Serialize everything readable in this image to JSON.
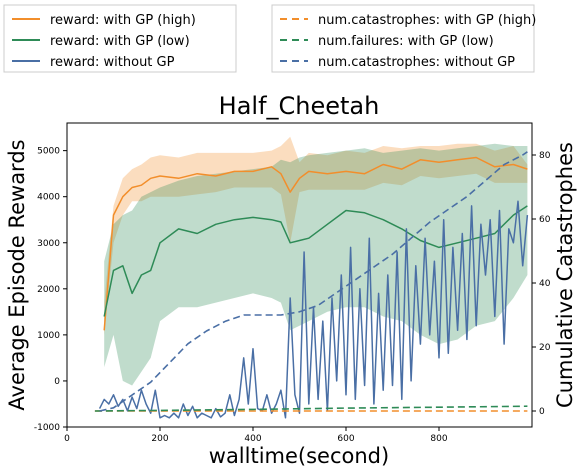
{
  "chart_data": {
    "type": "line",
    "title": "Half_Cheetah",
    "xlabel": "walltime(second)",
    "ylabel": "Average Episode Rewards",
    "ylabel_right": "Cumulative Catastrophes",
    "xlim": [
      0,
      1000
    ],
    "ylim": [
      -1000,
      5600
    ],
    "ylim_right": [
      -5,
      90
    ],
    "x_ticks": [
      0,
      200,
      400,
      600,
      800
    ],
    "y_ticks": [
      -1000,
      0,
      1000,
      2000,
      3000,
      4000,
      5000
    ],
    "y_ticks_right": [
      0,
      20,
      40,
      60,
      80
    ],
    "legend_position": "top (above plot, two boxes)",
    "legend_left": [
      {
        "label": "reward: with GP (high)",
        "color": "#f28e2b",
        "dash": false
      },
      {
        "label": "reward: with GP (low)",
        "color": "#2e8b57",
        "dash": false
      },
      {
        "label": "reward: without GP",
        "color": "#4a6fa5",
        "dash": false
      }
    ],
    "legend_right": [
      {
        "label": "num.catastrophes: with GP (high)",
        "color": "#f28e2b",
        "dash": true
      },
      {
        "label": "num.failures: with GP (low)",
        "color": "#2e8b57",
        "dash": true
      },
      {
        "label": "num.catastrophes: without GP",
        "color": "#4a6fa5",
        "dash": true
      }
    ],
    "series": [
      {
        "name": "reward: with GP (high)",
        "axis": "left",
        "color": "#f28e2b",
        "x": [
          80,
          100,
          120,
          140,
          160,
          180,
          200,
          240,
          280,
          320,
          360,
          400,
          440,
          460,
          480,
          500,
          520,
          560,
          600,
          640,
          680,
          720,
          760,
          800,
          840,
          880,
          920,
          960,
          990
        ],
        "y": [
          1100,
          3600,
          4000,
          4200,
          4250,
          4400,
          4450,
          4400,
          4500,
          4450,
          4550,
          4550,
          4650,
          4500,
          4100,
          4400,
          4550,
          4500,
          4550,
          4500,
          4700,
          4600,
          4800,
          4750,
          4800,
          4850,
          4650,
          4700,
          4600
        ],
        "lower": [
          1000,
          3000,
          3600,
          3900,
          3900,
          4000,
          4000,
          4000,
          4050,
          4100,
          4200,
          4200,
          4200,
          4050,
          3000,
          4100,
          4150,
          4150,
          4150,
          4150,
          4300,
          4250,
          4450,
          4400,
          4450,
          4500,
          4300,
          4300,
          4300
        ],
        "upper": [
          1700,
          3800,
          4400,
          4600,
          4700,
          4850,
          4900,
          4850,
          4950,
          4950,
          4950,
          4950,
          5000,
          5100,
          5300,
          4750,
          4950,
          4900,
          5000,
          4950,
          5100,
          5050,
          5100,
          5100,
          5150,
          5150,
          5000,
          5100,
          4700
        ]
      },
      {
        "name": "reward: with GP (low)",
        "axis": "left",
        "color": "#2e8b57",
        "x": [
          80,
          100,
          120,
          140,
          160,
          180,
          200,
          240,
          280,
          320,
          360,
          400,
          440,
          460,
          480,
          500,
          520,
          560,
          600,
          640,
          680,
          720,
          760,
          800,
          840,
          880,
          920,
          960,
          990
        ],
        "y": [
          1400,
          2400,
          2500,
          1900,
          2300,
          2400,
          3000,
          3300,
          3200,
          3400,
          3500,
          3550,
          3500,
          3450,
          3000,
          3050,
          3100,
          3400,
          3700,
          3650,
          3500,
          3300,
          3050,
          2900,
          3000,
          3100,
          3200,
          3600,
          3800
        ],
        "lower": [
          300,
          1000,
          0,
          -100,
          200,
          500,
          1300,
          1600,
          1600,
          1700,
          1800,
          1900,
          1800,
          1700,
          1100,
          1200,
          1300,
          1500,
          1600,
          1600,
          1400,
          1300,
          1000,
          800,
          900,
          1200,
          1300,
          1800,
          2300
        ],
        "upper": [
          2600,
          3400,
          3600,
          3700,
          4000,
          4100,
          4200,
          4350,
          4450,
          4500,
          4550,
          4600,
          4650,
          4800,
          4750,
          4850,
          4900,
          4950,
          5000,
          5050,
          4950,
          5000,
          5050,
          5000,
          5050,
          5100,
          5150,
          5100,
          5100
        ]
      },
      {
        "name": "reward: without GP",
        "axis": "left",
        "color": "#4a6fa5",
        "x": [
          70,
          80,
          90,
          100,
          110,
          120,
          130,
          140,
          150,
          160,
          170,
          180,
          190,
          200,
          210,
          220,
          230,
          240,
          250,
          260,
          270,
          280,
          290,
          300,
          310,
          320,
          330,
          340,
          350,
          360,
          370,
          380,
          390,
          400,
          410,
          420,
          430,
          440,
          450,
          460,
          470,
          480,
          490,
          500,
          510,
          520,
          530,
          540,
          550,
          560,
          570,
          580,
          590,
          600,
          610,
          620,
          630,
          640,
          650,
          660,
          670,
          680,
          690,
          700,
          710,
          720,
          730,
          740,
          750,
          760,
          770,
          780,
          790,
          800,
          810,
          820,
          830,
          840,
          850,
          860,
          870,
          880,
          890,
          900,
          910,
          920,
          930,
          940,
          950,
          960,
          970,
          980,
          990
        ],
        "y": [
          -600,
          -400,
          -500,
          -300,
          -550,
          -400,
          -650,
          -350,
          -600,
          -200,
          -500,
          -700,
          -200,
          -800,
          -750,
          -800,
          -700,
          -800,
          -500,
          -750,
          -550,
          -800,
          -700,
          -750,
          -800,
          -600,
          -780,
          -700,
          -300,
          -750,
          -400,
          500,
          -500,
          700,
          -600,
          -650,
          -300,
          -700,
          -500,
          -200,
          -800,
          1800,
          -300,
          -700,
          2800,
          -500,
          1600,
          -400,
          1300,
          -650,
          1800,
          0,
          2300,
          -300,
          2900,
          -400,
          2000,
          -100,
          3100,
          -500,
          1900,
          -200,
          2300,
          -100,
          2800,
          -400,
          3300,
          0,
          2500,
          800,
          3100,
          1000,
          2600,
          500,
          3500,
          600,
          2900,
          1100,
          3200,
          900,
          3800,
          1200,
          3400,
          2300,
          3500,
          1400,
          3700,
          800,
          3300,
          3000,
          3900,
          2500,
          3600
        ]
      },
      {
        "name": "num.catastrophes: with GP (high)",
        "axis": "right",
        "color": "#f28e2b",
        "dashed": true,
        "x": [
          60,
          200,
          400,
          600,
          800,
          990
        ],
        "y": [
          0,
          0,
          0,
          0,
          0,
          0
        ]
      },
      {
        "name": "num.failures: with GP (low)",
        "axis": "right",
        "color": "#2e8b57",
        "dashed": true,
        "x": [
          60,
          200,
          400,
          600,
          800,
          990
        ],
        "y": [
          0,
          0.2,
          0.5,
          0.9,
          1.2,
          1.5
        ]
      },
      {
        "name": "num.catastrophes: without GP",
        "axis": "right",
        "color": "#4a6fa5",
        "dashed": true,
        "x": [
          70,
          100,
          140,
          180,
          220,
          260,
          300,
          340,
          380,
          420,
          460,
          500,
          540,
          580,
          620,
          660,
          700,
          740,
          780,
          820,
          860,
          900,
          940,
          980,
          990
        ],
        "y": [
          0,
          1,
          5,
          9,
          15,
          21,
          25,
          28,
          30,
          30,
          30,
          31,
          33,
          37,
          41,
          45,
          49,
          54,
          59,
          63,
          67,
          72,
          77,
          80,
          81
        ]
      }
    ]
  }
}
